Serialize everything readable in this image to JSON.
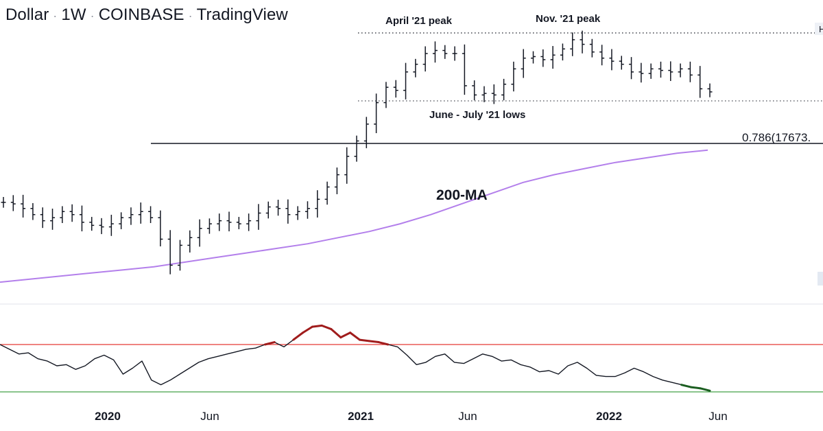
{
  "header": {
    "symbol": "Dollar",
    "interval": "1W",
    "exchange": "COINBASE",
    "platform": "TradingView"
  },
  "chart_data": [
    {
      "type": "candlestick",
      "subtype": "ohlc-bars",
      "title": "",
      "x_tick_labels": [
        "2020",
        "Jun",
        "2021",
        "Jun",
        "2022",
        "Jun"
      ],
      "annotations": {
        "april_peak": "April '21 peak",
        "nov_peak": "Nov. '21 peak",
        "june_july_lows": "June - July '21 lows",
        "ma_label": "200-MA",
        "fib_label": "0.786(17673."
      },
      "series": [
        {
          "name": "200-MA",
          "color": "#b37feb",
          "values": [
            0.04,
            0.06,
            0.08,
            0.1,
            0.12,
            0.14,
            0.17,
            0.2,
            0.23,
            0.26,
            0.29,
            0.33,
            0.37,
            0.42,
            0.48,
            0.55,
            0.62,
            0.69,
            0.74,
            0.78,
            0.82,
            0.85,
            0.88,
            0.9
          ]
        }
      ],
      "ohlc_close_profile": [
        0.56,
        0.55,
        0.52,
        0.48,
        0.44,
        0.46,
        0.5,
        0.48,
        0.43,
        0.41,
        0.4,
        0.42,
        0.46,
        0.48,
        0.5,
        0.46,
        0.32,
        0.15,
        0.28,
        0.33,
        0.39,
        0.42,
        0.44,
        0.43,
        0.42,
        0.44,
        0.49,
        0.53,
        0.52,
        0.48,
        0.5,
        0.52,
        0.58,
        0.66,
        0.74,
        0.86,
        0.96,
        1.07,
        1.21,
        1.31,
        1.29,
        1.41,
        1.46,
        1.53,
        1.55,
        1.53,
        1.53,
        1.32,
        1.26,
        1.27,
        1.26,
        1.33,
        1.43,
        1.5,
        1.51,
        1.49,
        1.52,
        1.56,
        1.62,
        1.59,
        1.54,
        1.5,
        1.48,
        1.46,
        1.41,
        1.4,
        1.43,
        1.42,
        1.41,
        1.43,
        1.39,
        1.3,
        1.28
      ]
    },
    {
      "type": "line",
      "subtype": "oscillator",
      "title": "",
      "upper_band": {
        "value": 70,
        "color": "#e53935"
      },
      "lower_band": {
        "value": 30,
        "color": "#43a047"
      },
      "overbought_color": "#a01c1c",
      "oversold_color": "#1b5e20",
      "series": [
        {
          "name": "",
          "values": [
            70,
            66,
            62,
            63,
            58,
            56,
            52,
            53,
            49,
            52,
            58,
            61,
            57,
            45,
            50,
            56,
            40,
            36,
            40,
            45,
            50,
            55,
            58,
            60,
            62,
            64,
            66,
            67,
            70,
            72,
            68,
            74,
            80,
            85,
            86,
            83,
            76,
            80,
            74,
            73,
            72,
            70,
            68,
            61,
            53,
            55,
            60,
            62,
            55,
            54,
            58,
            62,
            60,
            56,
            57,
            53,
            51,
            47,
            48,
            45,
            52,
            55,
            50,
            44,
            43,
            43,
            46,
            50,
            47,
            43,
            40,
            38,
            36,
            34,
            33,
            31
          ]
        }
      ]
    }
  ]
}
